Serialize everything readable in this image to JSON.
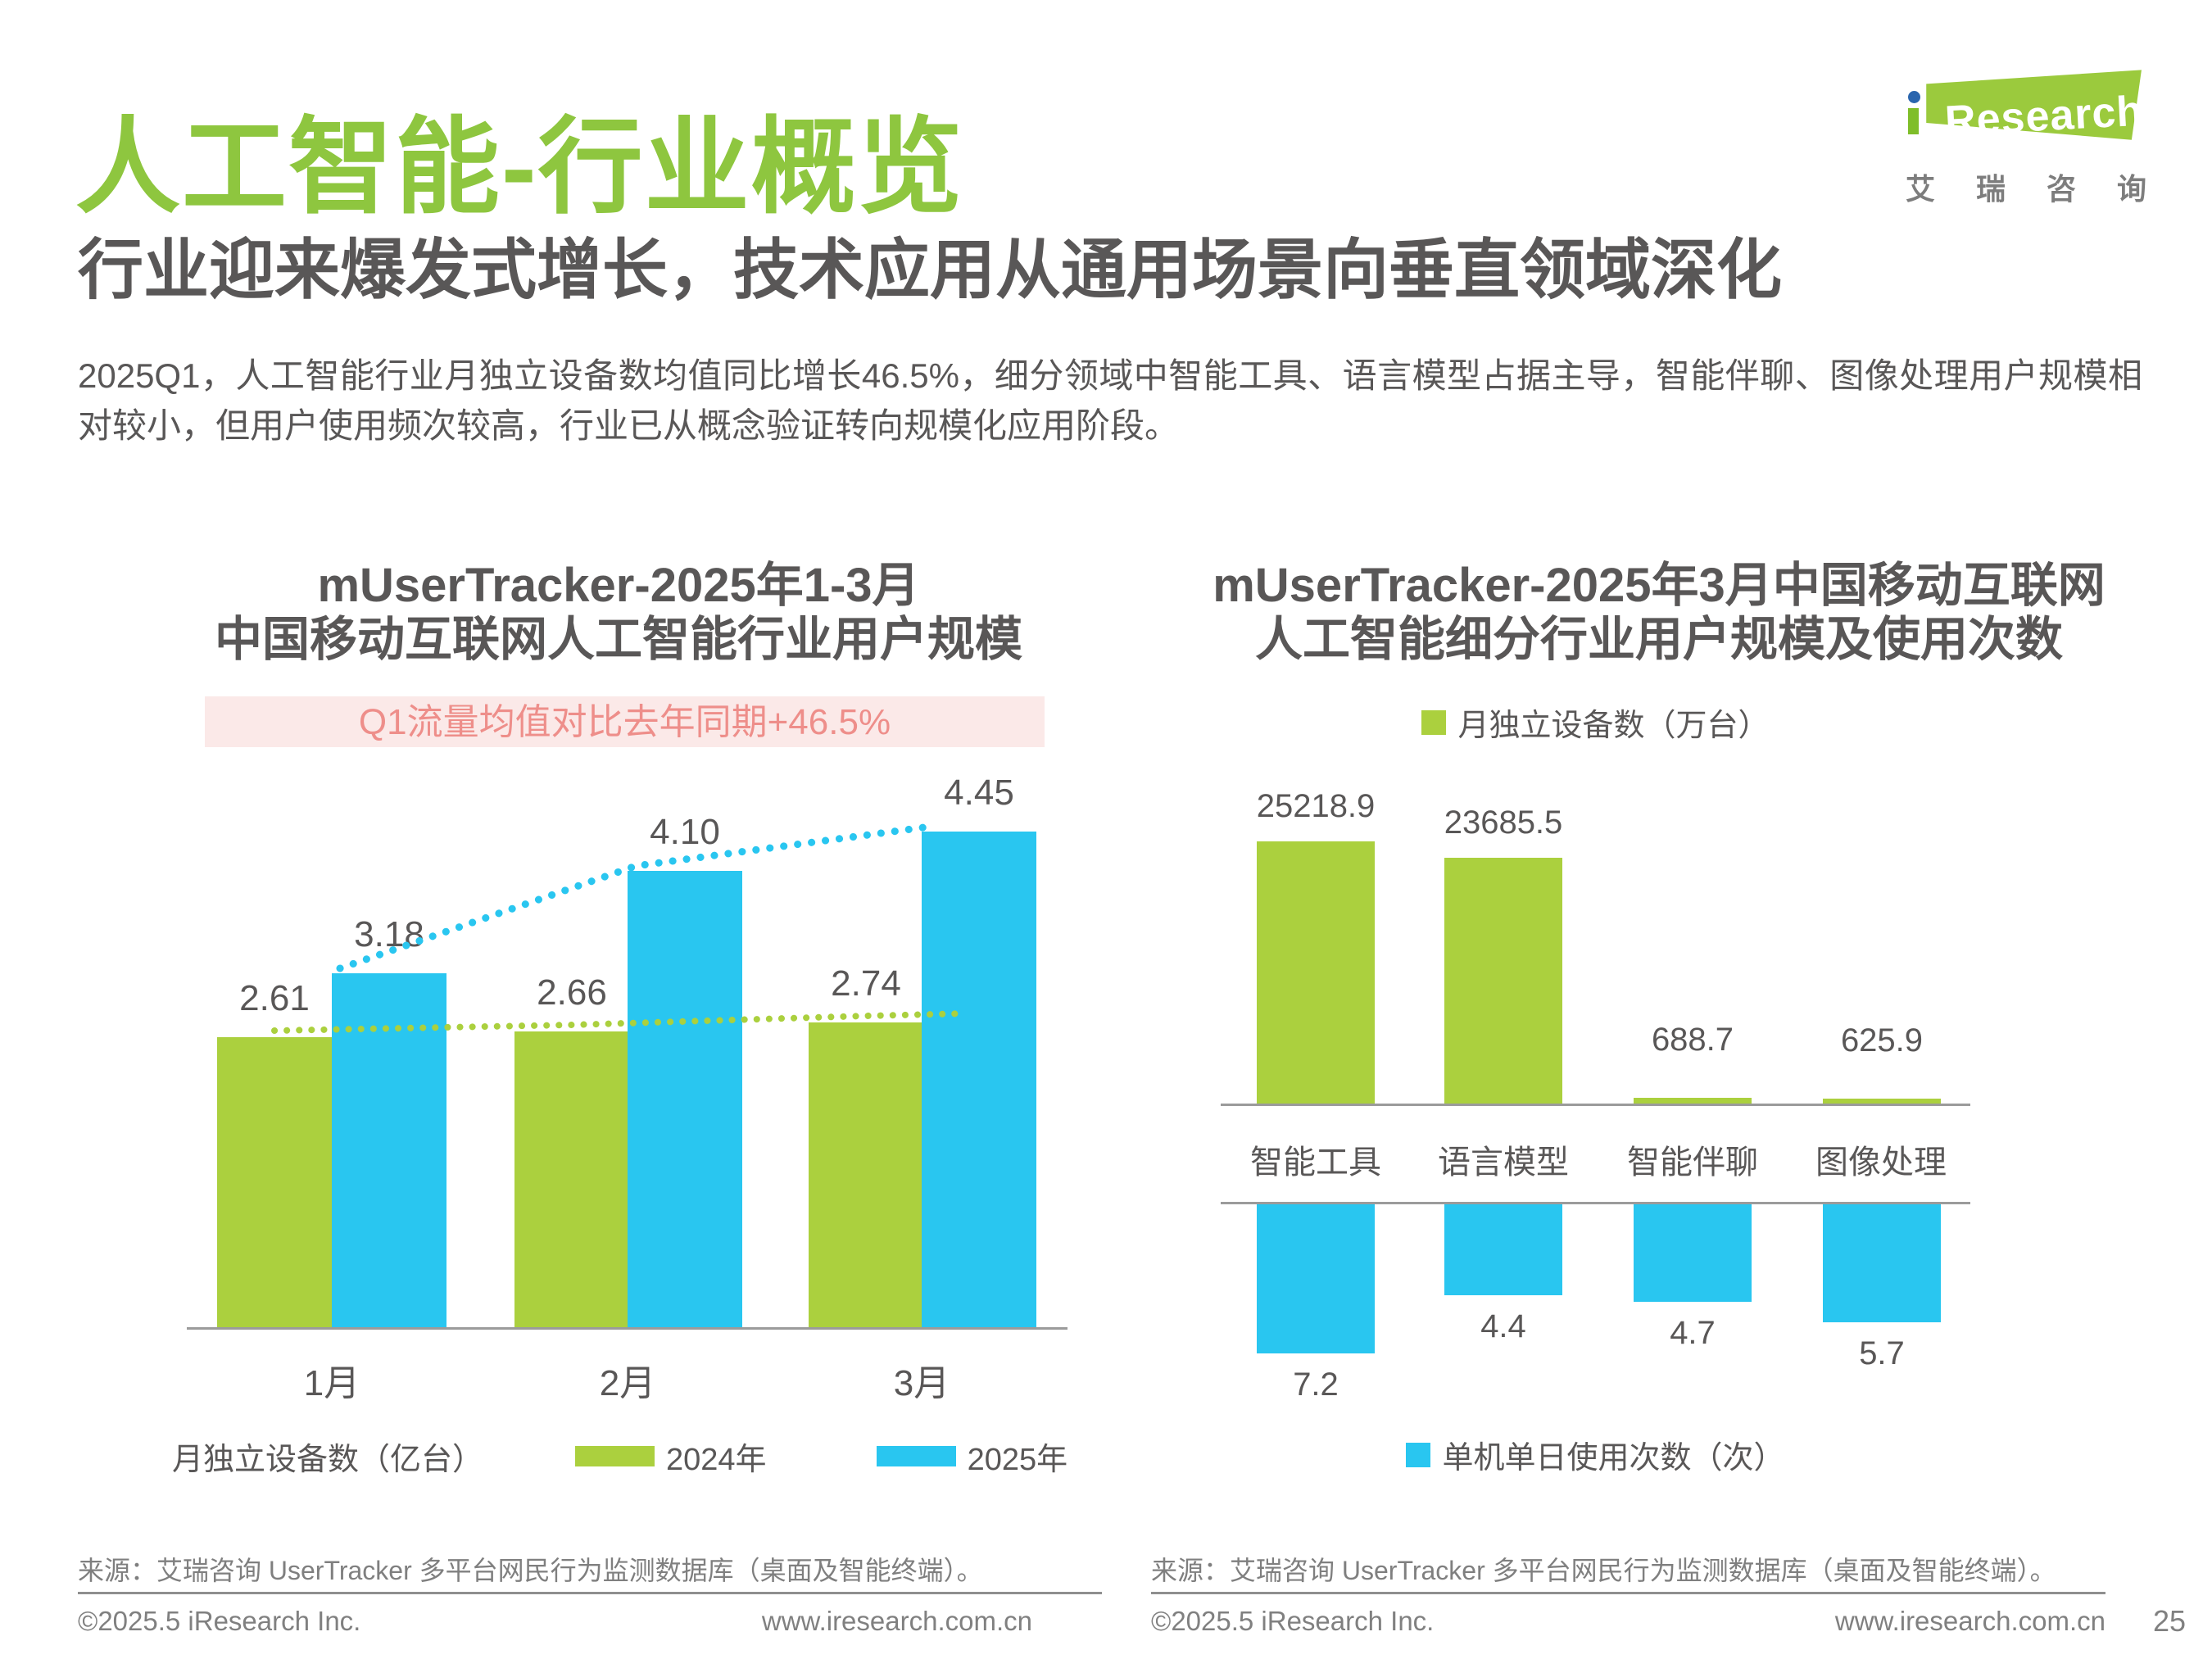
{
  "header": {
    "title": "人工智能-行业概览",
    "subtitle": "行业迎来爆发式增长，技术应用从通用场景向垂直领域深化",
    "paragraph": "2025Q1，人工智能行业月独立设备数均值同比增长46.5%，细分领域中智能工具、语言模型占据主导，智能伴聊、图像处理用户规模相对较小，但用户使用频次较高，行业已从概念验证转向规模化应用阶段。"
  },
  "logo": {
    "research": "Research",
    "cn": [
      "艾",
      "瑞",
      "咨",
      "询"
    ]
  },
  "colors": {
    "title_green": "#8ec63f",
    "bar_green": "#abd03e",
    "bar_blue": "#29c6f0",
    "banner_bg": "#fbe9e8",
    "banner_text": "#ee8e8a",
    "dark_text": "#595757",
    "axis_gray": "#9b9b9b"
  },
  "chart_data": [
    {
      "type": "bar",
      "title_lines": [
        "mUserTracker-2025年1-3月",
        "中国移动互联网人工智能行业用户规模"
      ],
      "annotation": "Q1流量均值对比去年同期+46.5%",
      "categories": [
        "1月",
        "2月",
        "3月"
      ],
      "series": [
        {
          "name": "2024年",
          "color": "#abd03e",
          "values": [
            2.61,
            2.66,
            2.74
          ]
        },
        {
          "name": "2025年",
          "color": "#29c6f0",
          "values": [
            3.18,
            4.1,
            4.45
          ]
        }
      ],
      "unit_label": "月独立设备数（亿台）",
      "ylabel": "月独立设备数（亿台）",
      "ylim": [
        0,
        4.45
      ],
      "grid": false,
      "legend_position": "bottom",
      "trend_dotted_lines": true,
      "value_decimals": 2
    },
    {
      "type": "bar",
      "variant": "mirrored",
      "title_lines": [
        "mUserTracker-2025年3月中国移动互联网",
        "人工智能细分行业用户规模及使用次数"
      ],
      "categories": [
        "智能工具",
        "语言模型",
        "智能伴聊",
        "图像处理"
      ],
      "series": [
        {
          "name": "月独立设备数（万台）",
          "color": "#abd03e",
          "direction": "up",
          "legend_position": "top",
          "values": [
            25218.9,
            23685.5,
            688.7,
            625.9
          ]
        },
        {
          "name": "单机单日使用次数（次）",
          "color": "#29c6f0",
          "direction": "down",
          "legend_position": "bottom",
          "values": [
            7.2,
            4.4,
            4.7,
            5.7
          ]
        }
      ],
      "grid": false,
      "value_decimals": 1
    }
  ],
  "footer": {
    "source": "来源：艾瑞咨询 UserTracker 多平台网民行为监测数据库（桌面及智能终端）。",
    "copyright": "©2025.5 iResearch Inc.",
    "website": "www.iresearch.com.cn",
    "page_number": "25"
  }
}
